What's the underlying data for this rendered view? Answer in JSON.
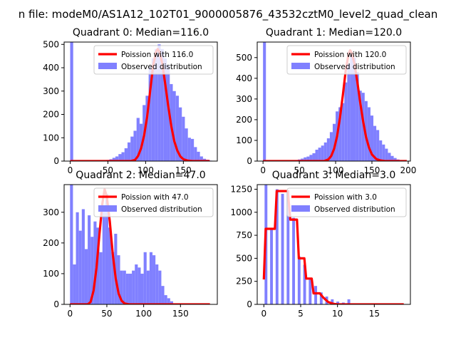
{
  "figure": {
    "suptitle": "n file: modeM0/AS1A12_102T01_9000005876_43532cztM0_level2_quad_clean"
  },
  "colors": {
    "poisson": "#ff0000",
    "hist": "#8080ff",
    "axis": "#000000"
  },
  "chart_data": [
    {
      "type": "bar",
      "title": "Quadrant 0: Median=116.0",
      "xlim": [
        -8,
        195
      ],
      "ylim": [
        0,
        510
      ],
      "xticks": [
        0,
        50,
        100,
        150
      ],
      "yticks": [
        0,
        100,
        200,
        300,
        400,
        500
      ],
      "bin_width": 4,
      "bins": [
        [
          0,
          510
        ],
        [
          44,
          2
        ],
        [
          48,
          5
        ],
        [
          52,
          8
        ],
        [
          56,
          14
        ],
        [
          60,
          20
        ],
        [
          64,
          30
        ],
        [
          68,
          38
        ],
        [
          72,
          55
        ],
        [
          76,
          80
        ],
        [
          80,
          105
        ],
        [
          84,
          130
        ],
        [
          88,
          185
        ],
        [
          92,
          160
        ],
        [
          96,
          240
        ],
        [
          100,
          280
        ],
        [
          104,
          405
        ],
        [
          108,
          440
        ],
        [
          112,
          480
        ],
        [
          116,
          500
        ],
        [
          120,
          480
        ],
        [
          124,
          440
        ],
        [
          128,
          410
        ],
        [
          132,
          330
        ],
        [
          136,
          300
        ],
        [
          140,
          280
        ],
        [
          144,
          230
        ],
        [
          148,
          190
        ],
        [
          152,
          140
        ],
        [
          156,
          100
        ],
        [
          160,
          95
        ],
        [
          164,
          60
        ],
        [
          168,
          40
        ],
        [
          172,
          20
        ],
        [
          176,
          10
        ],
        [
          180,
          6
        ],
        [
          184,
          2
        ]
      ],
      "poisson": {
        "label": "Poission with 116.0",
        "x": [
          0,
          80,
          86,
          90,
          94,
          98,
          102,
          106,
          110,
          114,
          116,
          118,
          122,
          126,
          130,
          134,
          138,
          142,
          146,
          150,
          156,
          162,
          185
        ],
        "y": [
          0,
          0,
          5,
          22,
          55,
          110,
          190,
          300,
          410,
          470,
          480,
          470,
          420,
          330,
          235,
          150,
          85,
          45,
          20,
          8,
          2,
          0,
          0
        ]
      },
      "legend": {
        "poisson": "Poission with 116.0",
        "hist": "Observed distribution",
        "loc": "upper-right"
      }
    },
    {
      "type": "bar",
      "title": "Quadrant 1: Median=120.0",
      "xlim": [
        -8,
        203
      ],
      "ylim": [
        0,
        575
      ],
      "xticks": [
        0,
        50,
        100,
        150,
        200
      ],
      "yticks": [
        0,
        100,
        200,
        300,
        400,
        500
      ],
      "bin_width": 4,
      "bins": [
        [
          0,
          575
        ],
        [
          40,
          2
        ],
        [
          44,
          5
        ],
        [
          48,
          8
        ],
        [
          52,
          12
        ],
        [
          56,
          18
        ],
        [
          60,
          22
        ],
        [
          64,
          30
        ],
        [
          68,
          38
        ],
        [
          72,
          55
        ],
        [
          76,
          65
        ],
        [
          80,
          75
        ],
        [
          84,
          90
        ],
        [
          88,
          110
        ],
        [
          92,
          140
        ],
        [
          96,
          180
        ],
        [
          100,
          240
        ],
        [
          104,
          260
        ],
        [
          108,
          280
        ],
        [
          112,
          380
        ],
        [
          116,
          470
        ],
        [
          120,
          520
        ],
        [
          124,
          500
        ],
        [
          128,
          430
        ],
        [
          132,
          340
        ],
        [
          136,
          330
        ],
        [
          140,
          290
        ],
        [
          144,
          260
        ],
        [
          148,
          220
        ],
        [
          152,
          170
        ],
        [
          156,
          150
        ],
        [
          160,
          100
        ],
        [
          164,
          80
        ],
        [
          168,
          60
        ],
        [
          172,
          40
        ],
        [
          176,
          25
        ],
        [
          180,
          15
        ],
        [
          184,
          8
        ],
        [
          188,
          4
        ],
        [
          192,
          2
        ]
      ],
      "poisson": {
        "label": "Poission with 120.0",
        "x": [
          0,
          84,
          90,
          94,
          98,
          102,
          106,
          110,
          114,
          118,
          120,
          122,
          126,
          130,
          134,
          138,
          142,
          146,
          150,
          156,
          162,
          168,
          198
        ],
        "y": [
          0,
          0,
          8,
          25,
          60,
          120,
          210,
          320,
          440,
          520,
          535,
          525,
          470,
          380,
          280,
          190,
          115,
          65,
          32,
          10,
          3,
          0,
          0
        ]
      },
      "legend": {
        "poisson": "Poission with 120.0",
        "hist": "Observed distribution",
        "loc": "upper-right"
      }
    },
    {
      "type": "bar",
      "title": "Quadrant 2: Median=47.0",
      "xlim": [
        -8,
        200
      ],
      "ylim": [
        0,
        390
      ],
      "xticks": [
        0,
        50,
        100,
        150
      ],
      "yticks": [
        0,
        100,
        200,
        300
      ],
      "bin_width": 4,
      "bins": [
        [
          0,
          390
        ],
        [
          4,
          130
        ],
        [
          8,
          300
        ],
        [
          12,
          240
        ],
        [
          16,
          310
        ],
        [
          20,
          180
        ],
        [
          24,
          290
        ],
        [
          28,
          220
        ],
        [
          32,
          270
        ],
        [
          36,
          250
        ],
        [
          40,
          170
        ],
        [
          44,
          320
        ],
        [
          48,
          360
        ],
        [
          52,
          250
        ],
        [
          56,
          170
        ],
        [
          60,
          230
        ],
        [
          64,
          160
        ],
        [
          68,
          110
        ],
        [
          72,
          110
        ],
        [
          76,
          100
        ],
        [
          80,
          100
        ],
        [
          84,
          110
        ],
        [
          88,
          130
        ],
        [
          92,
          120
        ],
        [
          96,
          100
        ],
        [
          100,
          170
        ],
        [
          104,
          110
        ],
        [
          108,
          170
        ],
        [
          112,
          160
        ],
        [
          116,
          130
        ],
        [
          120,
          110
        ],
        [
          124,
          60
        ],
        [
          128,
          30
        ],
        [
          132,
          20
        ],
        [
          136,
          10
        ]
      ],
      "poisson": {
        "label": "Poission with 47.0",
        "x": [
          0,
          24,
          28,
          32,
          36,
          40,
          44,
          47,
          50,
          54,
          58,
          62,
          66,
          70,
          74,
          80,
          190
        ],
        "y": [
          0,
          0,
          8,
          45,
          120,
          230,
          330,
          375,
          350,
          270,
          165,
          85,
          35,
          12,
          3,
          0,
          0
        ]
      },
      "legend": {
        "poisson": "Poission with 47.0",
        "hist": "Observed distribution",
        "loc": "upper-right"
      }
    },
    {
      "type": "bar",
      "title": "Quadrant 3: Median=3.0",
      "xlim": [
        -0.9,
        19.9
      ],
      "ylim": [
        0,
        1300
      ],
      "xticks": [
        0,
        5,
        10,
        15
      ],
      "yticks": [
        0,
        250,
        500,
        750,
        1000,
        1250
      ],
      "bin_width": 0.38,
      "bins": [
        [
          0.1,
          1300
        ],
        [
          0.85,
          820
        ],
        [
          1.6,
          1250
        ],
        [
          2.35,
          1200
        ],
        [
          3.1,
          1240
        ],
        [
          3.85,
          940
        ],
        [
          4.6,
          520
        ],
        [
          5.35,
          430
        ],
        [
          6.1,
          270
        ],
        [
          6.85,
          200
        ],
        [
          7.6,
          130
        ],
        [
          8.35,
          85
        ],
        [
          9.1,
          55
        ],
        [
          9.85,
          30
        ],
        [
          10.6,
          20
        ],
        [
          11.35,
          55
        ],
        [
          12.1,
          10
        ],
        [
          12.85,
          5
        ]
      ],
      "poisson": {
        "label": "Poission with 3.0",
        "x": [
          0,
          0.25,
          0.5,
          1.0,
          1.5,
          1.75,
          2.25,
          3.0,
          3.25,
          3.6,
          4.1,
          4.5,
          4.75,
          5.1,
          5.5,
          5.75,
          6.1,
          6.5,
          6.75,
          7.1,
          7.6,
          8.0,
          8.4,
          8.75,
          9.5,
          10,
          11,
          19
        ],
        "y": [
          270,
          820,
          820,
          820,
          820,
          1230,
          1230,
          1230,
          1230,
          920,
          920,
          920,
          500,
          500,
          500,
          280,
          280,
          280,
          120,
          120,
          120,
          80,
          50,
          25,
          5,
          0,
          0,
          0
        ]
      },
      "legend": {
        "poisson": "Poission with 3.0",
        "hist": "Observed distribution",
        "loc": "upper-right"
      }
    }
  ]
}
